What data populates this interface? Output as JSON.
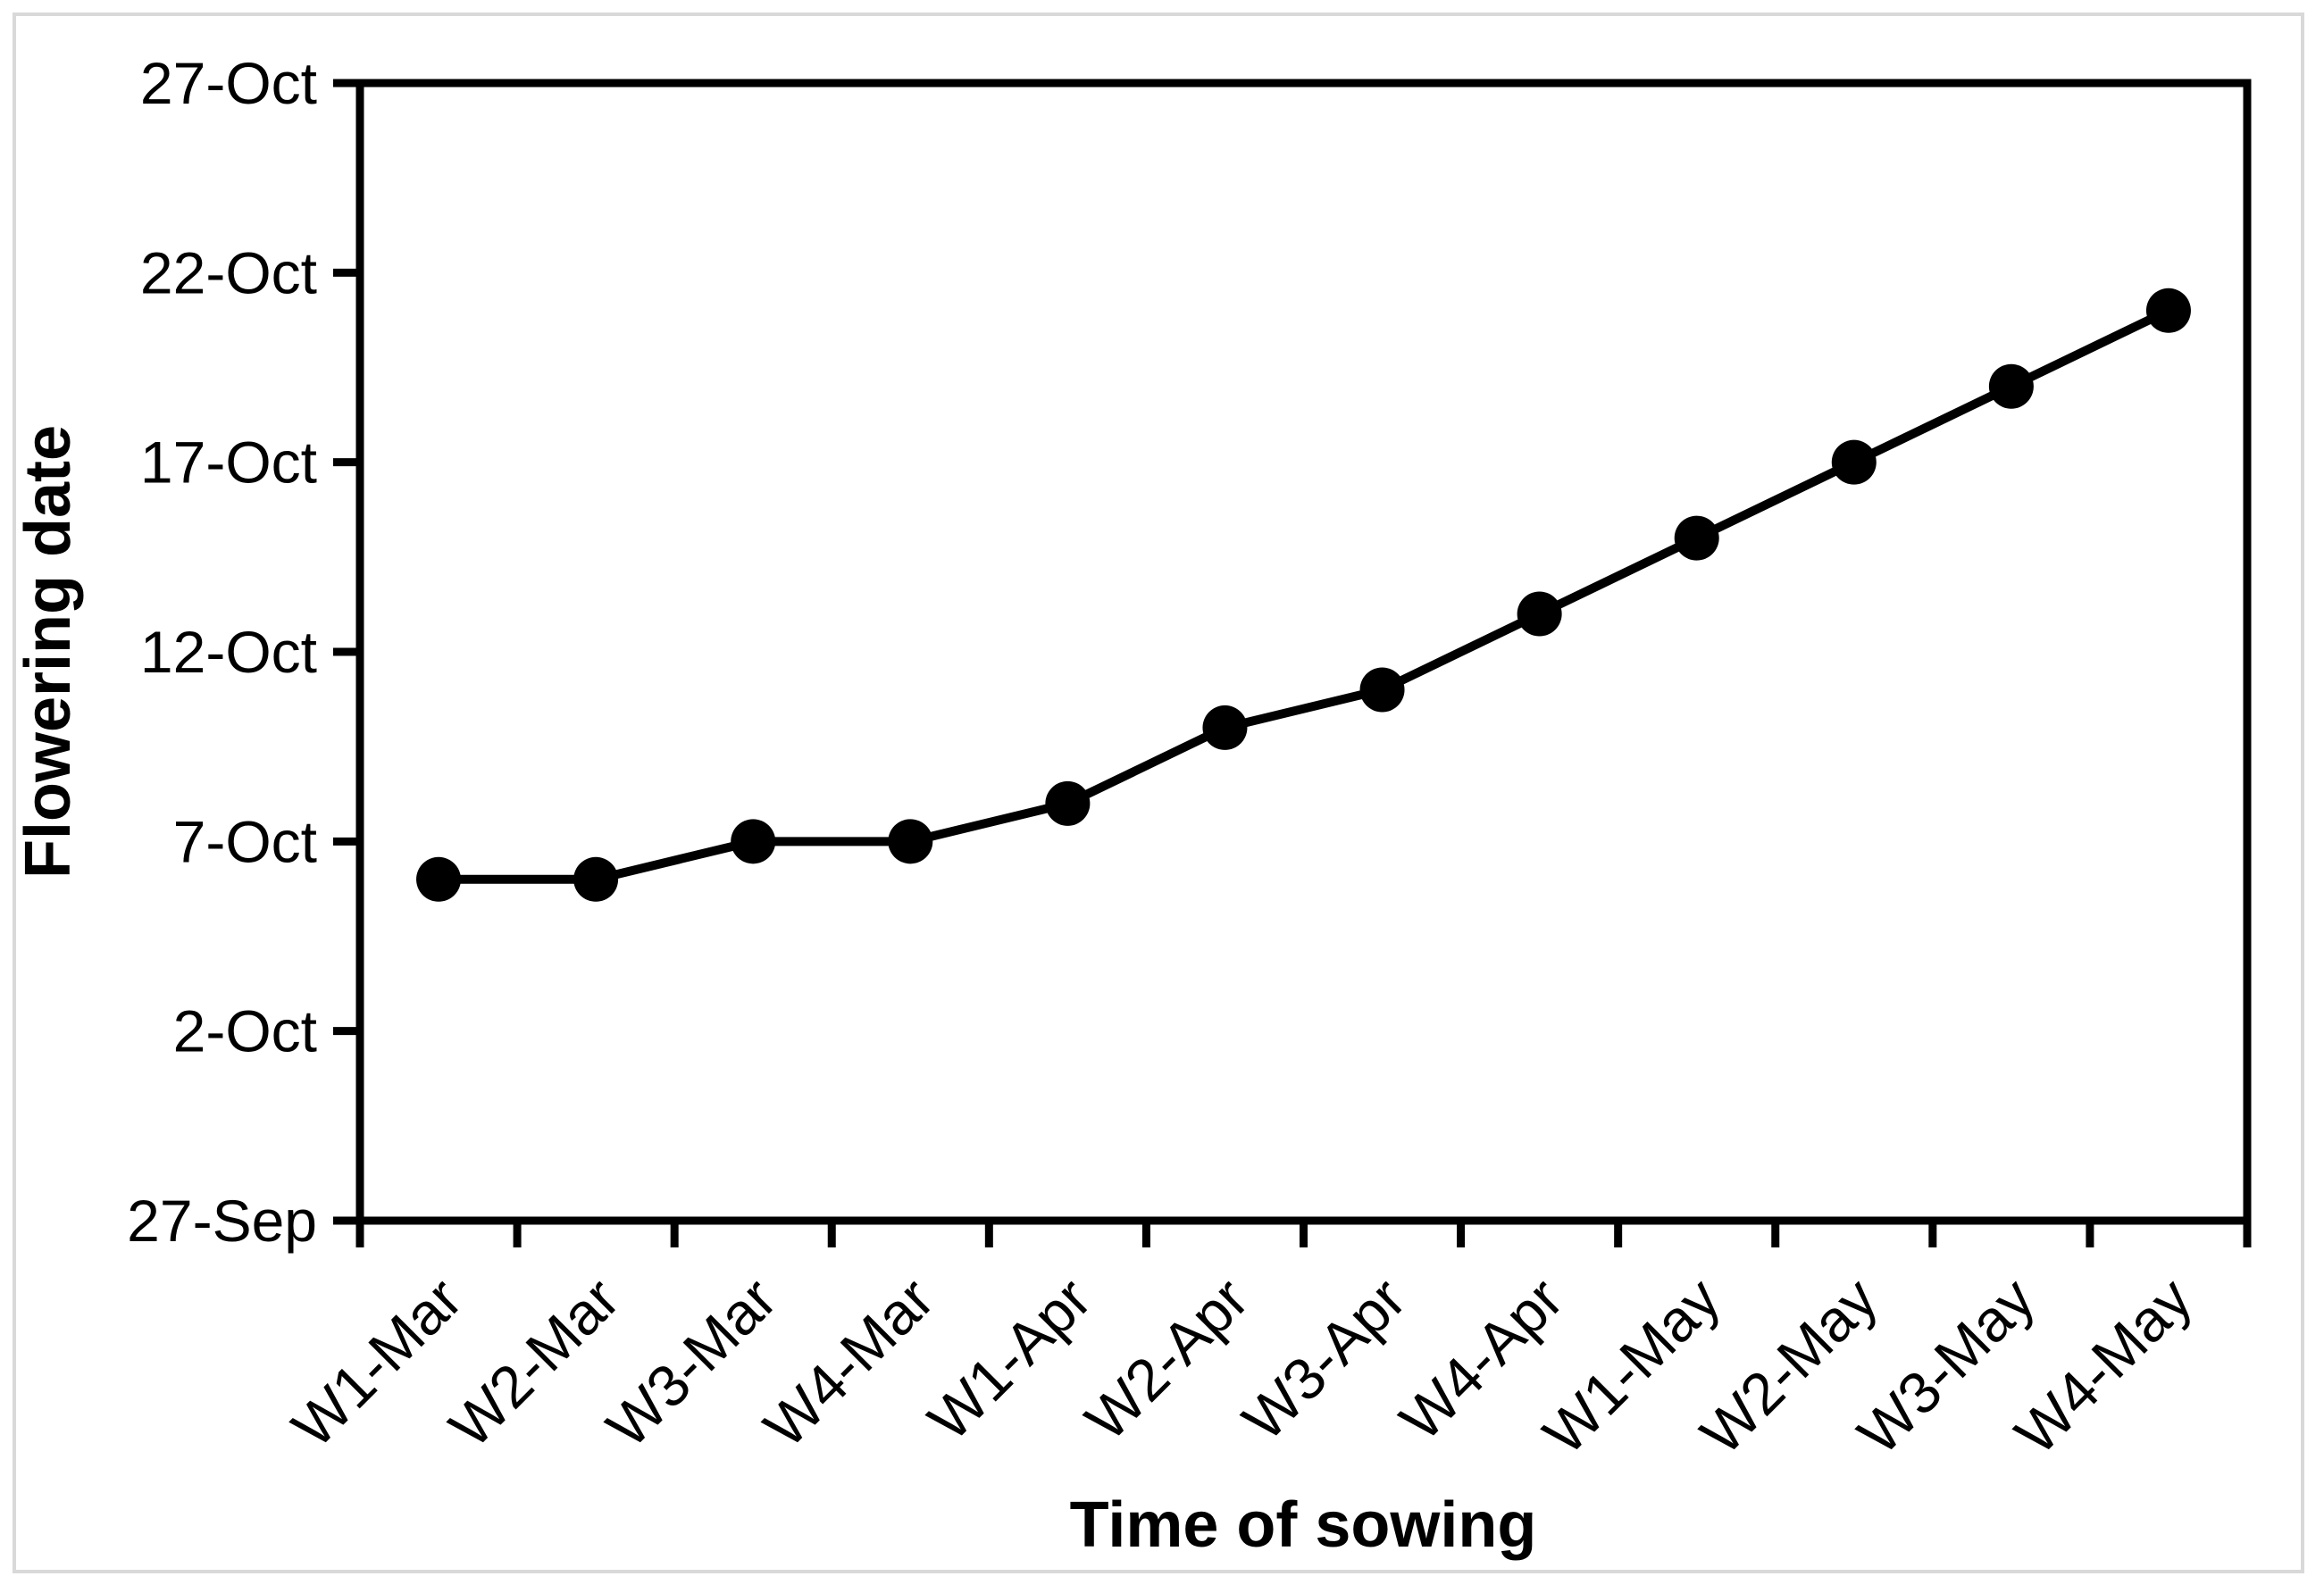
{
  "figure": {
    "border_color": "#d9d9d9",
    "background_color": "#ffffff"
  },
  "chart_data": {
    "type": "line",
    "title": "",
    "xlabel": "Time of sowing",
    "ylabel": "Flowering date",
    "categories": [
      "W1-Mar",
      "W2-Mar",
      "W3-Mar",
      "W4-Mar",
      "W1-Apr",
      "W2-Apr",
      "W3-Apr",
      "W4-Apr",
      "W1-May",
      "W2-May",
      "W3-May",
      "W4-May"
    ],
    "values": [
      "6-Oct",
      "6-Oct",
      "7-Oct",
      "7-Oct",
      "8-Oct",
      "10-Oct",
      "11-Oct",
      "13-Oct",
      "15-Oct",
      "17-Oct",
      "19-Oct",
      "21-Oct"
    ],
    "y_tick_labels_top_to_bottom": [
      "27-Oct",
      "22-Oct",
      "17-Oct",
      "12-Oct",
      "7-Oct",
      "2-Oct",
      "27-Sep"
    ],
    "ylim": [
      "27-Sep",
      "27-Oct"
    ],
    "y_tick_interval_days": 5,
    "grid": "off",
    "legend": "none",
    "line_color": "#000000",
    "marker": "filled-circle",
    "marker_color": "#000000"
  }
}
